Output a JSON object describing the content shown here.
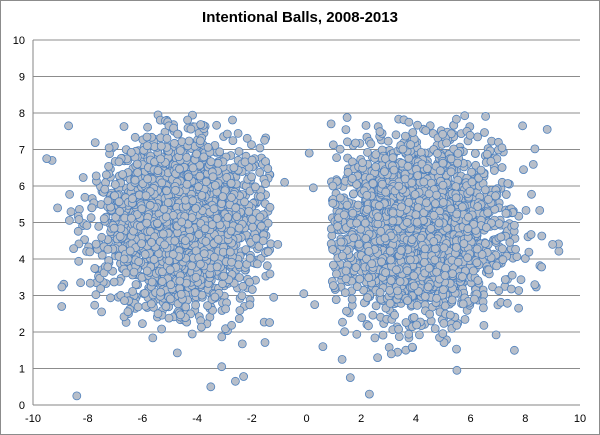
{
  "chart_data": {
    "type": "scatter",
    "title": "Intentional Balls, 2008-2013",
    "xlabel": "",
    "ylabel": "",
    "xlim": [
      -10,
      10
    ],
    "ylim": [
      0,
      10
    ],
    "x_ticks": [
      -10,
      -8,
      -6,
      -4,
      -2,
      0,
      2,
      4,
      6,
      8,
      10
    ],
    "y_ticks": [
      0,
      1,
      2,
      3,
      4,
      5,
      6,
      7,
      8,
      9,
      10
    ],
    "grid": "horizontal",
    "legend": "none",
    "colors": {
      "marker_fill": "#b7bec9",
      "marker_edge": "#4f81bd",
      "gridline": "#8c8c8c"
    },
    "clusters": [
      {
        "center_x": -4.6,
        "center_y": 5.0,
        "spread_x": 1.4,
        "spread_y": 1.15,
        "approx_points": 2600
      },
      {
        "center_x": 4.2,
        "center_y": 4.8,
        "spread_x": 1.5,
        "spread_y": 1.2,
        "approx_points": 2600
      }
    ],
    "outliers": [
      [
        -8.4,
        0.25
      ],
      [
        -3.5,
        0.5
      ],
      [
        -2.6,
        0.65
      ],
      [
        -2.3,
        0.78
      ],
      [
        -3.1,
        1.05
      ],
      [
        -9.1,
        5.4
      ],
      [
        -9.3,
        6.7
      ],
      [
        -9.5,
        6.75
      ],
      [
        -8.7,
        7.65
      ],
      [
        -1.7,
        5.15
      ],
      [
        -1.4,
        4.2
      ],
      [
        -1.2,
        2.95
      ],
      [
        -1.05,
        4.4
      ],
      [
        -0.8,
        6.1
      ],
      [
        -0.1,
        3.05
      ],
      [
        0.1,
        6.9
      ],
      [
        0.3,
        2.75
      ],
      [
        0.25,
        5.95
      ],
      [
        0.9,
        7.7
      ],
      [
        0.6,
        1.6
      ],
      [
        1.3,
        1.25
      ],
      [
        1.6,
        0.75
      ],
      [
        2.6,
        1.3
      ],
      [
        3.1,
        1.4
      ],
      [
        2.3,
        0.3
      ],
      [
        5.5,
        0.95
      ],
      [
        7.6,
        1.5
      ],
      [
        7.9,
        7.65
      ],
      [
        8.8,
        7.55
      ],
      [
        9.0,
        4.4
      ]
    ]
  }
}
